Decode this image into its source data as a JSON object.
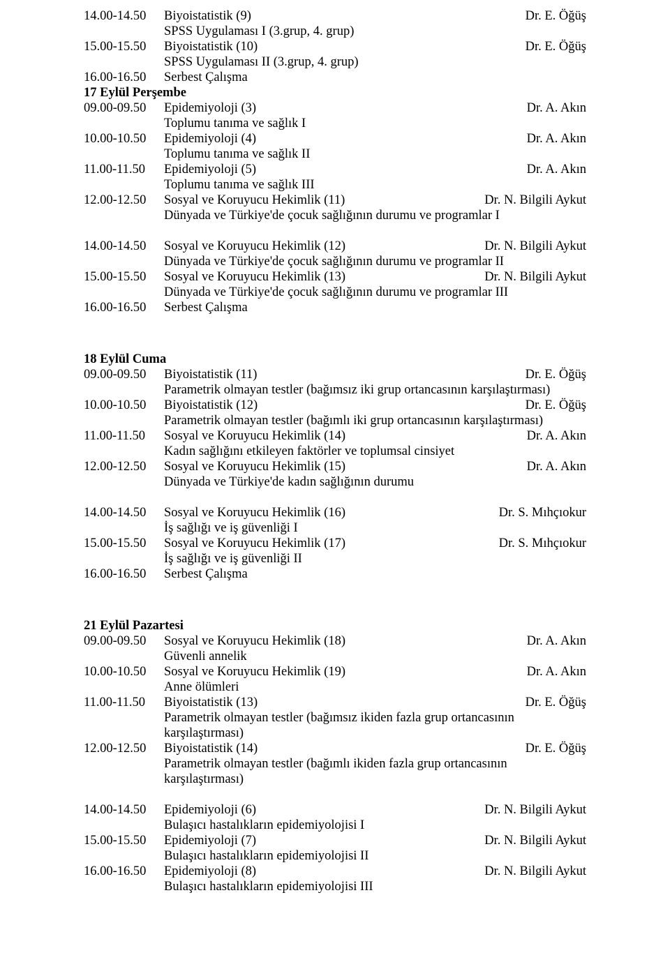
{
  "pg": {
    "b1": {
      "r1_time": "14.00-14.50",
      "r1_course": "Biyoistatistik (9)",
      "r1_instr": "Dr. E. Öğüş",
      "r1_sub": "SPSS Uygulaması I (3.grup, 4. grup)",
      "r2_time": "15.00-15.50",
      "r2_course": "Biyoistatistik (10)",
      "r2_instr": "Dr. E. Öğüş",
      "r2_sub": "SPSS Uygulaması II (3.grup, 4. grup)",
      "r3_time": "16.00-16.50",
      "r3_course": "Serbest Çalışma"
    },
    "d1": {
      "hdr": "17 Eylül Perşembe",
      "r1_time": "09.00-09.50",
      "r1_course": "Epidemiyoloji (3)",
      "r1_instr": "Dr. A. Akın",
      "r1_sub": "Toplumu tanıma ve sağlık I",
      "r2_time": "10.00-10.50",
      "r2_course": "Epidemiyoloji (4)",
      "r2_instr": "Dr. A. Akın",
      "r2_sub": "Toplumu tanıma ve sağlık II",
      "r3_time": "11.00-11.50",
      "r3_course": "Epidemiyoloji (5)",
      "r3_instr": "Dr. A. Akın",
      "r3_sub": "Toplumu tanıma ve sağlık III",
      "r4_time": "12.00-12.50",
      "r4_course": "Sosyal ve Koruyucu Hekimlik (11)",
      "r4_instr": "Dr. N. Bilgili Aykut",
      "r4_sub": "Dünyada ve Türkiye'de çocuk sağlığının durumu ve programlar I",
      "r5_time": "14.00-14.50",
      "r5_course": " Sosyal ve Koruyucu Hekimlik (12)",
      "r5_instr": "Dr. N. Bilgili Aykut",
      "r5_sub": "Dünyada ve Türkiye'de çocuk sağlığının durumu ve programlar II",
      "r6_time": "15.00-15.50",
      "r6_course": "Sosyal ve Koruyucu Hekimlik (13)",
      "r6_instr": "Dr. N. Bilgili Aykut",
      "r6_sub": "Dünyada ve Türkiye'de çocuk sağlığının durumu ve programlar III",
      "r7_time": "16.00-16.50",
      "r7_course": "Serbest Çalışma"
    },
    "d2": {
      "hdr": "18 Eylül Cuma",
      "r1_time": "09.00-09.50",
      "r1_course": "Biyoistatistik (11)",
      "r1_instr": "Dr. E. Öğüş",
      "r1_sub": "Parametrik olmayan testler  (bağımsız iki grup ortancasının karşılaştırması)",
      "r2_time": "10.00-10.50",
      "r2_course": "Biyoistatistik (12)",
      "r2_instr": "Dr. E. Öğüş",
      "r2_sub": "Parametrik olmayan testler  (bağımlı iki grup ortancasının karşılaştırması)",
      "r3_time": "11.00-11.50",
      "r3_course": "Sosyal ve Koruyucu Hekimlik (14)",
      "r3_instr": "Dr. A. Akın",
      "r3_sub": "Kadın sağlığını etkileyen faktörler ve toplumsal cinsiyet",
      "r4_time": "12.00-12.50",
      "r4_course": "Sosyal ve Koruyucu Hekimlik (15)",
      "r4_instr": "Dr. A. Akın",
      "r4_sub": "Dünyada ve Türkiye'de kadın sağlığının durumu",
      "r5_time": "14.00-14.50",
      "r5_course": "Sosyal ve Koruyucu Hekimlik (16)",
      "r5_instr": "Dr. S. Mıhçıokur",
      "r5_sub": "İş sağlığı ve iş güvenliği I",
      "r6_time": "15.00-15.50",
      "r6_course": "Sosyal ve Koruyucu Hekimlik (17)",
      "r6_instr": "Dr. S. Mıhçıokur",
      "r6_sub": "İş sağlığı ve iş güvenliği II",
      "r7_time": "16.00-16.50",
      "r7_course": "Serbest  Çalışma"
    },
    "d3": {
      "hdr": "21 Eylül Pazartesi",
      "r1_time": "09.00-09.50",
      "r1_course": "Sosyal ve Koruyucu Hekimlik (18)",
      "r1_instr": "Dr. A. Akın",
      "r1_sub": "Güvenli annelik",
      "r2_time": "10.00-10.50",
      "r2_course": "Sosyal ve Koruyucu Hekimlik (19)",
      "r2_instr": "Dr. A. Akın",
      "r2_sub": "Anne ölümleri",
      "r3_time": "11.00-11.50",
      "r3_course": "Biyoistatistik (13)",
      "r3_instr": "Dr. E. Öğüş",
      "r3_sub": "Parametrik olmayan testler  (bağımsız ikiden fazla grup ortancasının karşılaştırması)",
      "r4_time": "12.00-12.50",
      "r4_course": "Biyoistatistik (14)",
      "r4_instr": "Dr. E. Öğüş",
      "r4_sub": "Parametrik olmayan testler  (bağımlı ikiden fazla grup ortancasının karşılaştırması)",
      "r5_time": "14.00-14.50",
      "r5_course": "Epidemiyoloji (6)",
      "r5_instr": "Dr. N. Bilgili Aykut",
      "r5_sub": "Bulaşıcı hastalıkların epidemiyolojisi I",
      "r6_time": "15.00-15.50",
      "r6_course": "Epidemiyoloji (7)",
      "r6_instr": "Dr. N. Bilgili Aykut",
      "r6_sub": "Bulaşıcı hastalıkların epidemiyolojisi II",
      "r7_time": "16.00-16.50",
      "r7_course": "Epidemiyoloji (8)",
      "r7_instr": "Dr. N. Bilgili Aykut",
      "r7_sub": "Bulaşıcı hastalıkların epidemiyolojisi III"
    }
  }
}
